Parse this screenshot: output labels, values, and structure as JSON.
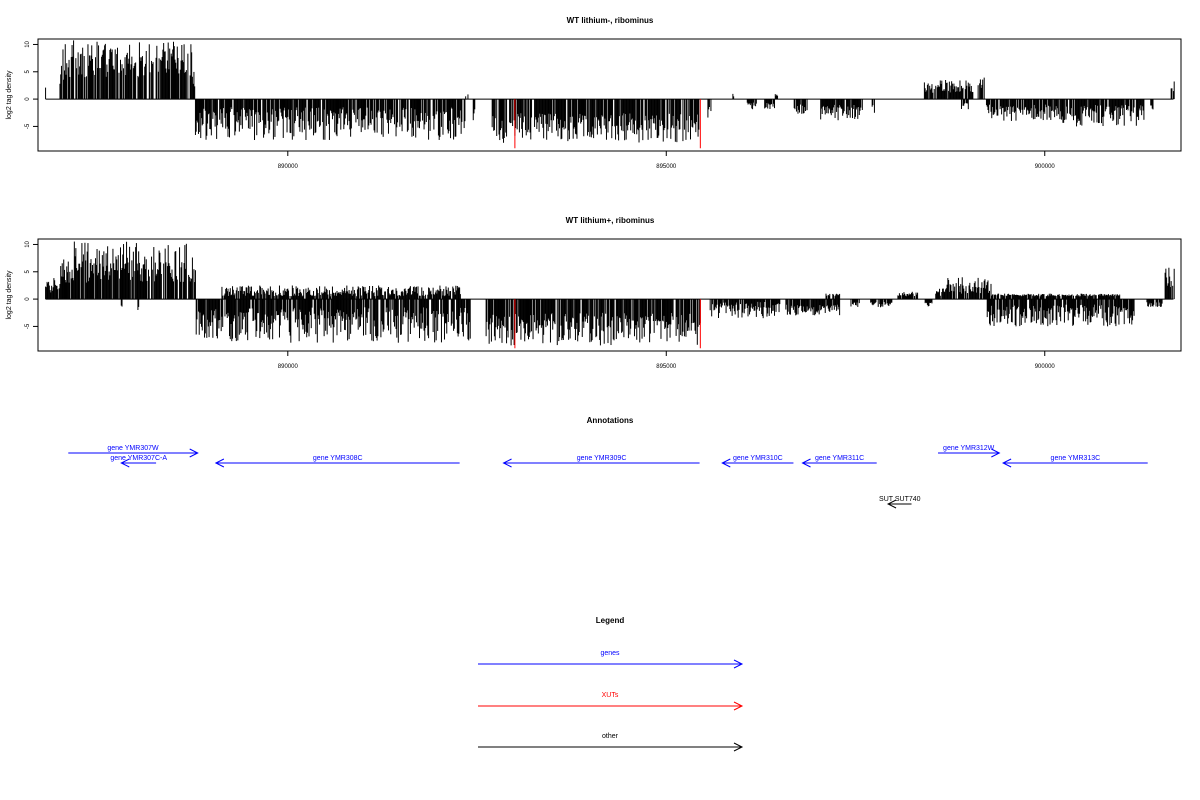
{
  "colors": {
    "genes": "#0000ff",
    "XUTs": "#ff0000",
    "other": "#000000",
    "signal": "#000000",
    "highlight": "#ff0000"
  },
  "chart_data": [
    {
      "type": "bar",
      "title": "WT lithium-, ribominus",
      "ylabel": "log2 tag density",
      "xlim": [
        886700,
        901800
      ],
      "ylim": [
        -9.5,
        11
      ],
      "xticks": [
        890000,
        895000,
        900000
      ],
      "yticks": [
        10,
        5,
        0,
        -5
      ],
      "x_start": 886800,
      "x_step": 10,
      "segments": [
        {
          "from": 886800,
          "to": 886810,
          "type": "pos",
          "lo": 2,
          "hi": 2.5
        },
        {
          "from": 886990,
          "to": 887000,
          "type": "pos",
          "lo": 2,
          "hi": 3
        },
        {
          "from": 887000,
          "to": 887020,
          "type": "pos",
          "lo": 4,
          "hi": 7
        },
        {
          "from": 887020,
          "to": 887280,
          "type": "pos",
          "lo": 3,
          "hi": 11
        },
        {
          "from": 887280,
          "to": 888740,
          "type": "pos",
          "lo": 4,
          "hi": 10.5
        },
        {
          "from": 888740,
          "to": 888780,
          "type": "pos",
          "lo": 2,
          "hi": 5
        },
        {
          "from": 888780,
          "to": 892350,
          "type": "neg",
          "lo": 1.5,
          "hi": 7.5
        },
        {
          "from": 892350,
          "to": 892390,
          "type": "pos",
          "lo": 0.5,
          "hi": 1
        },
        {
          "from": 892450,
          "to": 892480,
          "type": "neg",
          "lo": 1,
          "hi": 4
        },
        {
          "from": 892700,
          "to": 895450,
          "type": "neg",
          "lo": 2.5,
          "hi": 8
        },
        {
          "from": 895550,
          "to": 895600,
          "type": "neg",
          "lo": 1,
          "hi": 4
        },
        {
          "from": 895880,
          "to": 895900,
          "type": "pos",
          "lo": 0.5,
          "hi": 1.5
        },
        {
          "from": 896070,
          "to": 896200,
          "type": "neg",
          "lo": 0.5,
          "hi": 2
        },
        {
          "from": 896300,
          "to": 896440,
          "type": "neg",
          "lo": 0.5,
          "hi": 2
        },
        {
          "from": 896440,
          "to": 896480,
          "type": "pos",
          "lo": 0.5,
          "hi": 1
        },
        {
          "from": 896680,
          "to": 896880,
          "type": "neg",
          "lo": 1,
          "hi": 3
        },
        {
          "from": 897040,
          "to": 897600,
          "type": "neg",
          "lo": 1,
          "hi": 4
        },
        {
          "from": 897720,
          "to": 897760,
          "type": "neg",
          "lo": 1,
          "hi": 3
        },
        {
          "from": 898410,
          "to": 899060,
          "type": "pos",
          "lo": 1,
          "hi": 3.5
        },
        {
          "from": 898900,
          "to": 899000,
          "type": "neg",
          "lo": 0.5,
          "hi": 2
        },
        {
          "from": 899120,
          "to": 899220,
          "type": "pos",
          "lo": 2,
          "hi": 4.5
        },
        {
          "from": 899220,
          "to": 899340,
          "type": "neg",
          "lo": 1,
          "hi": 4
        },
        {
          "from": 899340,
          "to": 900120,
          "type": "neg",
          "lo": 1,
          "hi": 4
        },
        {
          "from": 900120,
          "to": 901320,
          "type": "neg",
          "lo": 1,
          "hi": 5
        },
        {
          "from": 901400,
          "to": 901440,
          "type": "neg",
          "lo": 1,
          "hi": 2
        },
        {
          "from": 901670,
          "to": 901720,
          "type": "pos",
          "lo": 1,
          "hi": 3.5
        }
      ],
      "highlight": [
        {
          "x": 893000,
          "y": -9
        },
        {
          "x": 895450,
          "y": -9
        }
      ]
    },
    {
      "type": "bar",
      "title": "WT lithium+, ribominus",
      "ylabel": "log2 tag density",
      "xlim": [
        886700,
        901800
      ],
      "ylim": [
        -9.5,
        11
      ],
      "xticks": [
        890000,
        895000,
        900000
      ],
      "yticks": [
        10,
        5,
        0,
        -5
      ],
      "x_start": 886800,
      "x_step": 10,
      "segments": [
        {
          "from": 886800,
          "to": 886820,
          "type": "pos",
          "lo": 2,
          "hi": 3.5
        },
        {
          "from": 886820,
          "to": 887000,
          "type": "pos",
          "lo": 1,
          "hi": 4
        },
        {
          "from": 887000,
          "to": 887300,
          "type": "pos",
          "lo": 3,
          "hi": 11
        },
        {
          "from": 887300,
          "to": 888790,
          "type": "pos",
          "lo": 3,
          "hi": 10.5
        },
        {
          "from": 887800,
          "to": 887820,
          "type": "neg",
          "lo": 1,
          "hi": 2
        },
        {
          "from": 888020,
          "to": 888040,
          "type": "neg",
          "lo": 1,
          "hi": 2
        },
        {
          "from": 888790,
          "to": 892420,
          "type": "neg",
          "lo": 1.5,
          "hi": 8
        },
        {
          "from": 889130,
          "to": 892290,
          "type": "pos",
          "lo": 0.5,
          "hi": 2.5
        },
        {
          "from": 892620,
          "to": 895460,
          "type": "neg",
          "lo": 2.5,
          "hi": 8.5
        },
        {
          "from": 895580,
          "to": 896520,
          "type": "neg",
          "lo": 0.5,
          "hi": 3.5
        },
        {
          "from": 896580,
          "to": 897300,
          "type": "neg",
          "lo": 1,
          "hi": 3
        },
        {
          "from": 897100,
          "to": 897300,
          "type": "pos",
          "lo": 0.5,
          "hi": 1
        },
        {
          "from": 897440,
          "to": 897560,
          "type": "neg",
          "lo": 0.5,
          "hi": 1.5
        },
        {
          "from": 897700,
          "to": 898000,
          "type": "neg",
          "lo": 0.5,
          "hi": 1.5
        },
        {
          "from": 898060,
          "to": 898330,
          "type": "pos",
          "lo": 0.5,
          "hi": 1.5
        },
        {
          "from": 898420,
          "to": 898480,
          "type": "neg",
          "lo": 0.5,
          "hi": 1.5
        },
        {
          "from": 898420,
          "to": 898520,
          "type": "neg",
          "lo": 0.5,
          "hi": 1.5
        },
        {
          "from": 898560,
          "to": 898700,
          "type": "pos",
          "lo": 0.5,
          "hi": 2
        },
        {
          "from": 898700,
          "to": 899300,
          "type": "pos",
          "lo": 1,
          "hi": 4
        },
        {
          "from": 899240,
          "to": 901200,
          "type": "neg",
          "lo": 1,
          "hi": 5
        },
        {
          "from": 899280,
          "to": 901000,
          "type": "pos",
          "lo": 0.5,
          "hi": 1
        },
        {
          "from": 901340,
          "to": 901560,
          "type": "neg",
          "lo": 0.5,
          "hi": 1.5
        },
        {
          "from": 901590,
          "to": 901720,
          "type": "pos",
          "lo": 2,
          "hi": 6.5
        }
      ],
      "highlight": [
        {
          "x": 893000,
          "y": -9
        },
        {
          "x": 895450,
          "y": -9
        }
      ]
    }
  ],
  "annotations": {
    "title": "Annotations",
    "items": [
      {
        "label": "gene YMR307W",
        "start": 887100,
        "end": 888810,
        "strand": "+",
        "row": 0,
        "category": "genes"
      },
      {
        "label": "gene YMR307C-A",
        "start": 887800,
        "end": 888260,
        "strand": "-",
        "row": 1,
        "category": "genes"
      },
      {
        "label": "gene YMR308C",
        "start": 889050,
        "end": 892270,
        "strand": "-",
        "row": 1,
        "category": "genes"
      },
      {
        "label": "gene YMR309C",
        "start": 892850,
        "end": 895440,
        "strand": "-",
        "row": 1,
        "category": "genes"
      },
      {
        "label": "gene YMR310C",
        "start": 895740,
        "end": 896680,
        "strand": "-",
        "row": 1,
        "category": "genes"
      },
      {
        "label": "gene YMR311C",
        "start": 896800,
        "end": 897780,
        "strand": "-",
        "row": 1,
        "category": "genes"
      },
      {
        "label": "gene YMR312W",
        "start": 898590,
        "end": 899400,
        "strand": "+",
        "row": 0,
        "category": "genes"
      },
      {
        "label": "gene YMR313C",
        "start": 899450,
        "end": 901360,
        "strand": "-",
        "row": 1,
        "category": "genes"
      },
      {
        "label": "SUT SUT740",
        "start": 897930,
        "end": 898240,
        "strand": "-",
        "row": 3,
        "category": "other"
      }
    ]
  },
  "legend": {
    "title": "Legend",
    "items": [
      {
        "label": "genes",
        "category": "genes"
      },
      {
        "label": "XUTs",
        "category": "XUTs"
      },
      {
        "label": "other",
        "category": "other"
      }
    ]
  }
}
